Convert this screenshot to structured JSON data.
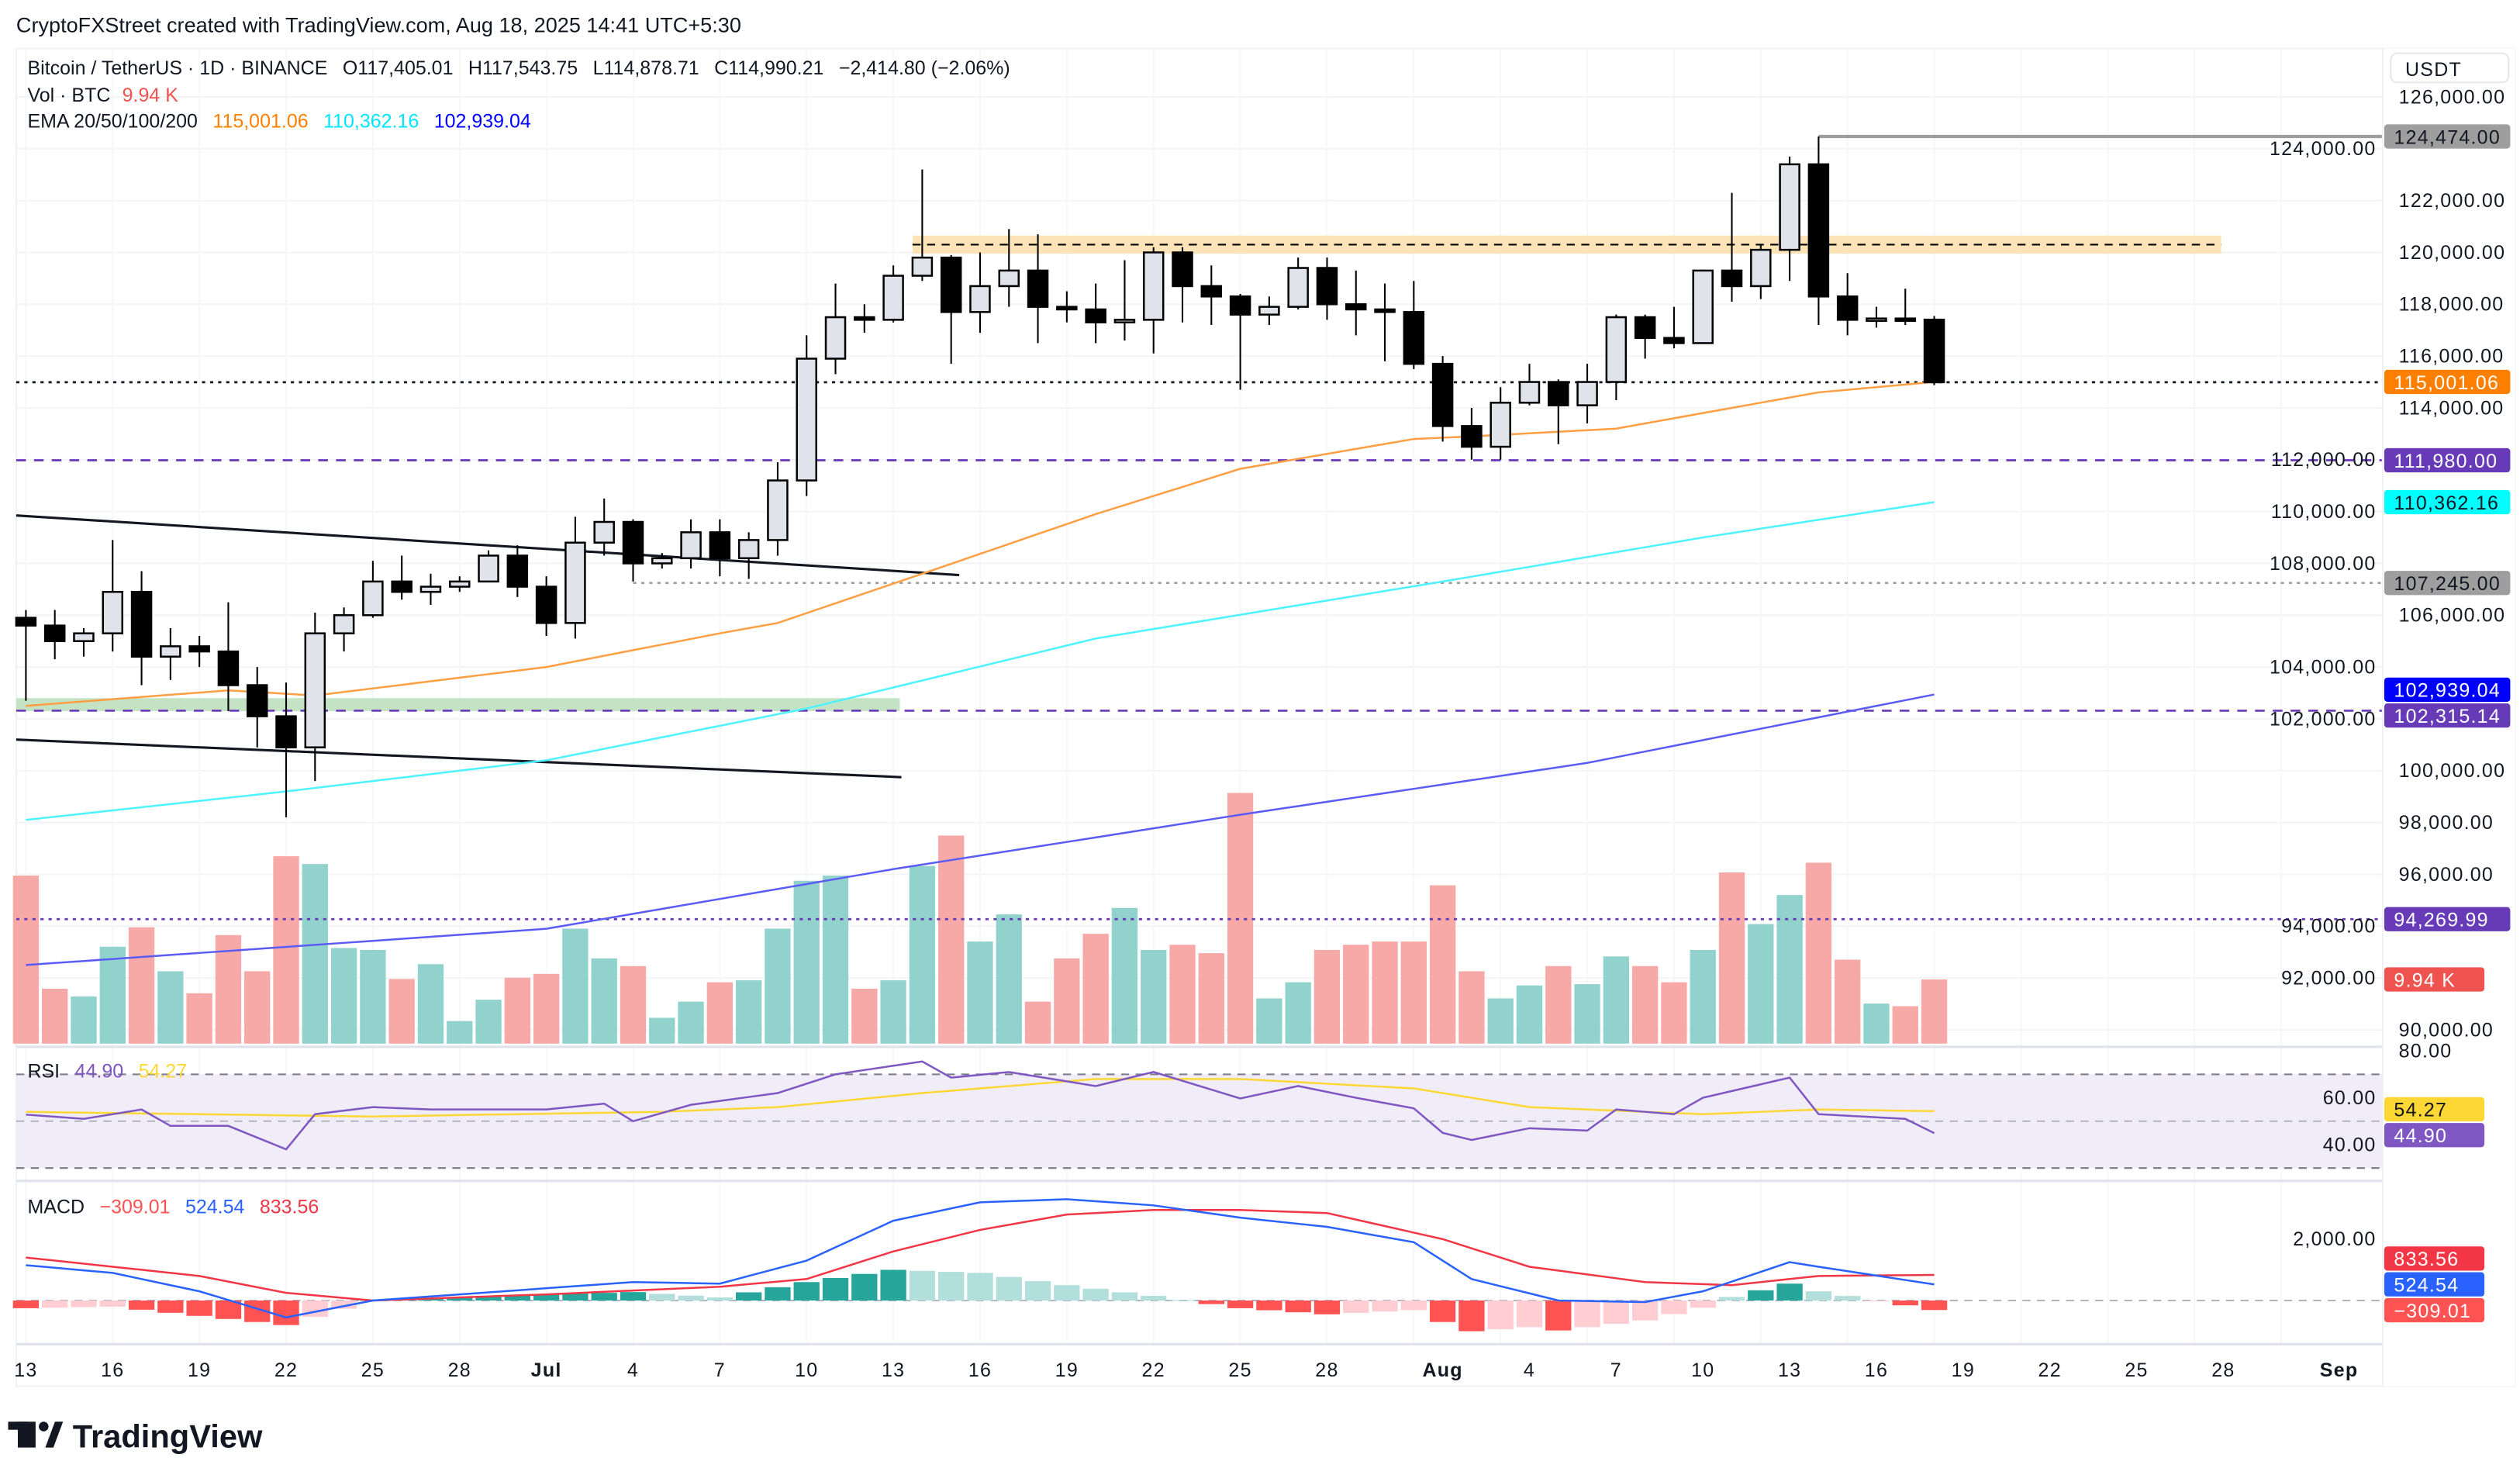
{
  "header": "CryptoFXStreet created with TradingView.com, Aug 18, 2025 14:41 UTC+5:30",
  "legend": {
    "symbol": "Bitcoin / TetherUS · 1D · BINANCE",
    "open": "O117,405.01",
    "high": "H117,543.75",
    "low": "L114,878.71",
    "close": "C114,990.21",
    "change": "−2,414.80 (−2.06%)",
    "vol_label": "Vol · BTC",
    "vol_value": "9.94 K",
    "ema_label": "EMA 20/50/100/200",
    "ema_values": [
      "115,001.06",
      "110,362.16",
      "102,939.04"
    ]
  },
  "currency": "USDT",
  "logo": "TradingView",
  "colors": {
    "up_body": "#e1e3ea",
    "down_body": "#000000",
    "vol_up": "#92d2cc",
    "vol_down": "#f7a9a7",
    "ema_orange": "#ff9f43",
    "ema_cyan": "#4df3ff",
    "ema_blue": "#5b5cf6",
    "rsi": "#7e57c2",
    "rsi_ma": "#fdd835",
    "macd": "#2962ff",
    "signal": "#f23645"
  },
  "price_axis_ticks": [
    "126,000.00",
    "124,000.00",
    "122,000.00",
    "120,000.00",
    "118,000.00",
    "116,000.00",
    "114,000.00",
    "112,000.00",
    "110,000.00",
    "108,000.00",
    "106,000.00",
    "104,000.00",
    "102,000.00",
    "100,000.00",
    "98,000.00",
    "96,000.00",
    "94,000.00",
    "92,000.00",
    "90,000.00"
  ],
  "price_badges": [
    {
      "text": "124,474.00",
      "value": 124474,
      "bg": "#9e9e9e",
      "fg": "#131722"
    },
    {
      "text": "115,001.06",
      "value": 115001.06,
      "bg": "#ff8000",
      "fg": "#ffffff"
    },
    {
      "text": "111,980.00",
      "value": 111980,
      "bg": "#673ab7",
      "fg": "#ffffff"
    },
    {
      "text": "110,362.16",
      "value": 110362.16,
      "bg": "#00ffff",
      "fg": "#131722"
    },
    {
      "text": "107,245.00",
      "value": 107245,
      "bg": "#9e9e9e",
      "fg": "#131722"
    },
    {
      "text": "102,939.04",
      "value": 102939.04,
      "bg": "#0000ff",
      "fg": "#ffffff"
    },
    {
      "text": "102,315.14",
      "value": 102315.14,
      "bg": "#673ab7",
      "fg": "#ffffff"
    },
    {
      "text": "94,269.99",
      "value": 94269.99,
      "bg": "#673ab7",
      "fg": "#ffffff"
    }
  ],
  "volume_badge": {
    "text": "9.94 K",
    "value": 9.94,
    "bg": "#ef5350",
    "fg": "#ffffff"
  },
  "rsi": {
    "label": "RSI",
    "value": "44.90",
    "ma_value": "54.27",
    "axis_ticks": [
      "80.00",
      "60.00",
      "40.00"
    ],
    "levels": [
      30,
      50,
      70
    ],
    "badges": [
      {
        "text": "54.27",
        "value": 54.27,
        "bg": "#fdd835",
        "fg": "#131722"
      },
      {
        "text": "44.90",
        "value": 44.9,
        "bg": "#7e57c2",
        "fg": "#ffffff"
      }
    ]
  },
  "macd": {
    "label": "MACD",
    "hist_value": "−309.01",
    "macd_value": "524.54",
    "signal_value": "833.56",
    "axis_ticks": [
      "2,000.00"
    ],
    "badges": [
      {
        "text": "833.56",
        "value": 833.56,
        "bg": "#f23645",
        "fg": "#ffffff"
      },
      {
        "text": "524.54",
        "value": 524.54,
        "bg": "#2962ff",
        "fg": "#ffffff"
      },
      {
        "text": "−309.01",
        "value": -309.01,
        "bg": "#ff5252",
        "fg": "#ffffff"
      }
    ]
  },
  "time_axis": [
    "13",
    "16",
    "19",
    "22",
    "25",
    "28",
    "Jul",
    "4",
    "7",
    "10",
    "13",
    "16",
    "19",
    "22",
    "25",
    "28",
    "Aug",
    "4",
    "7",
    "10",
    "13",
    "16",
    "19",
    "22",
    "25",
    "28",
    "Sep"
  ],
  "chart_data": {
    "type": "candlestick",
    "title": "Bitcoin / TetherUS · 1D · BINANCE",
    "x_axis_labels": [
      "13",
      "16",
      "19",
      "22",
      "25",
      "28",
      "Jul",
      "4",
      "7",
      "10",
      "13",
      "16",
      "19",
      "22",
      "25",
      "28",
      "Aug",
      "4",
      "7",
      "10",
      "13",
      "16",
      "19",
      "22",
      "25",
      "28",
      "Sep"
    ],
    "ylim": [
      89000,
      127000
    ],
    "candles_columns": [
      "date",
      "open",
      "high",
      "low",
      "close",
      "volume_k"
    ],
    "candles": [
      [
        "2025-06-13",
        105900,
        106200,
        102700,
        105600,
        26
      ],
      [
        "2025-06-14",
        105600,
        106200,
        104300,
        105000,
        8.5
      ],
      [
        "2025-06-15",
        105000,
        105500,
        104400,
        105300,
        7.3
      ],
      [
        "2025-06-16",
        105300,
        108900,
        104600,
        106900,
        15
      ],
      [
        "2025-06-17",
        106900,
        107700,
        103300,
        104400,
        18
      ],
      [
        "2025-06-18",
        104400,
        105500,
        103500,
        104800,
        11.2
      ],
      [
        "2025-06-19",
        104800,
        105200,
        104000,
        104600,
        7.8
      ],
      [
        "2025-06-20",
        104600,
        106500,
        102300,
        103300,
        16.8
      ],
      [
        "2025-06-21",
        103300,
        104000,
        100900,
        102100,
        11.2
      ],
      [
        "2025-06-22",
        102100,
        103400,
        98200,
        100900,
        29
      ],
      [
        "2025-06-23",
        100900,
        106100,
        99600,
        105300,
        27.8
      ],
      [
        "2025-06-24",
        105300,
        106300,
        104600,
        106000,
        14.8
      ],
      [
        "2025-06-25",
        106000,
        108100,
        105900,
        107300,
        14.5
      ],
      [
        "2025-06-26",
        107300,
        108300,
        106600,
        106900,
        10
      ],
      [
        "2025-06-27",
        106900,
        107600,
        106400,
        107100,
        12.3
      ],
      [
        "2025-06-28",
        107100,
        107500,
        106900,
        107300,
        3.5
      ],
      [
        "2025-06-29",
        107300,
        108500,
        107300,
        108300,
        6.8
      ],
      [
        "2025-06-30",
        108300,
        108700,
        106700,
        107100,
        10.2
      ],
      [
        "2025-07-01",
        107100,
        107500,
        105200,
        105700,
        10.8
      ],
      [
        "2025-07-02",
        105700,
        109800,
        105100,
        108800,
        17.8
      ],
      [
        "2025-07-03",
        108800,
        110500,
        108300,
        109600,
        13.2
      ],
      [
        "2025-07-04",
        109600,
        109700,
        107300,
        108000,
        12
      ],
      [
        "2025-07-05",
        108000,
        108400,
        107800,
        108200,
        4
      ],
      [
        "2025-07-06",
        108200,
        109700,
        107800,
        109200,
        6.5
      ],
      [
        "2025-07-07",
        109200,
        109700,
        107500,
        108200,
        9.5
      ],
      [
        "2025-07-08",
        108200,
        109200,
        107400,
        108900,
        9.8
      ],
      [
        "2025-07-09",
        108900,
        111900,
        108300,
        111200,
        17.8
      ],
      [
        "2025-07-10",
        111200,
        116800,
        110600,
        115900,
        25.2
      ],
      [
        "2025-07-11",
        115900,
        118800,
        115300,
        117500,
        26
      ],
      [
        "2025-07-12",
        117500,
        118000,
        116900,
        117400,
        8.5
      ],
      [
        "2025-07-13",
        117400,
        119500,
        117300,
        119100,
        9.8
      ],
      [
        "2025-07-14",
        119100,
        123200,
        118900,
        119800,
        27.5
      ],
      [
        "2025-07-15",
        119800,
        119900,
        115700,
        117700,
        32.2
      ],
      [
        "2025-07-16",
        117700,
        120000,
        116900,
        118700,
        15.8
      ],
      [
        "2025-07-17",
        118700,
        120900,
        117900,
        119300,
        20
      ],
      [
        "2025-07-18",
        119300,
        120700,
        116500,
        117900,
        6.5
      ],
      [
        "2025-07-19",
        117900,
        118500,
        117300,
        117800,
        13.2
      ],
      [
        "2025-07-20",
        117800,
        118800,
        116500,
        117300,
        17
      ],
      [
        "2025-07-21",
        117300,
        119700,
        116600,
        117400,
        21
      ],
      [
        "2025-07-22",
        117400,
        120200,
        116100,
        120000,
        14.5
      ],
      [
        "2025-07-23",
        120000,
        120200,
        117300,
        118700,
        15.3
      ],
      [
        "2025-07-24",
        118700,
        119500,
        117200,
        118300,
        14
      ],
      [
        "2025-07-25",
        118300,
        118400,
        114700,
        117600,
        38.8
      ],
      [
        "2025-07-26",
        117600,
        118300,
        117200,
        117900,
        7
      ],
      [
        "2025-07-27",
        117900,
        119800,
        117800,
        119400,
        9.5
      ],
      [
        "2025-07-28",
        119400,
        119800,
        117400,
        118000,
        14.5
      ],
      [
        "2025-07-29",
        118000,
        119300,
        116800,
        117800,
        15.3
      ],
      [
        "2025-07-30",
        117800,
        118800,
        115800,
        117700,
        15.8
      ],
      [
        "2025-07-31",
        117700,
        118900,
        115500,
        115700,
        15.8
      ],
      [
        "2025-08-01",
        115700,
        116000,
        112700,
        113300,
        24.5
      ],
      [
        "2025-08-02",
        113300,
        114000,
        112000,
        112500,
        11.2
      ],
      [
        "2025-08-03",
        112500,
        114800,
        112000,
        114200,
        7
      ],
      [
        "2025-08-04",
        114200,
        115700,
        114100,
        115000,
        9
      ],
      [
        "2025-08-05",
        115000,
        115100,
        112600,
        114100,
        12
      ],
      [
        "2025-08-06",
        114100,
        115700,
        113400,
        115000,
        9.2
      ],
      [
        "2025-08-07",
        115000,
        117600,
        114300,
        117500,
        13.5
      ],
      [
        "2025-08-08",
        117500,
        117600,
        115900,
        116700,
        12
      ],
      [
        "2025-08-09",
        116700,
        117900,
        116300,
        116500,
        9.5
      ],
      [
        "2025-08-10",
        116500,
        119300,
        116500,
        119300,
        14.5
      ],
      [
        "2025-08-11",
        119300,
        122300,
        118100,
        118700,
        26.5
      ],
      [
        "2025-08-12",
        118700,
        120300,
        118200,
        120100,
        18.5
      ],
      [
        "2025-08-13",
        120100,
        123700,
        118900,
        123400,
        23
      ],
      [
        "2025-08-14",
        123400,
        124474,
        117200,
        118300,
        28
      ],
      [
        "2025-08-15",
        118300,
        119200,
        116800,
        117400,
        13
      ],
      [
        "2025-08-16",
        117400,
        117900,
        117100,
        117450,
        6.2
      ],
      [
        "2025-08-17",
        117450,
        118600,
        117200,
        117405,
        5.8
      ],
      [
        "2025-08-18",
        117405.01,
        117543.75,
        114878.71,
        114990.21,
        9.94
      ]
    ],
    "ema_20": [
      [
        "2025-06-13",
        102500
      ],
      [
        "2025-06-20",
        103100
      ],
      [
        "2025-06-23",
        102900
      ],
      [
        "2025-07-01",
        104000
      ],
      [
        "2025-07-07",
        105300
      ],
      [
        "2025-07-09",
        105700
      ],
      [
        "2025-07-14",
        107600
      ],
      [
        "2025-07-20",
        109900
      ],
      [
        "2025-07-25",
        111650
      ],
      [
        "2025-07-31",
        112800
      ],
      [
        "2025-08-02",
        112900
      ],
      [
        "2025-08-07",
        113200
      ],
      [
        "2025-08-11",
        114000
      ],
      [
        "2025-08-14",
        114600
      ],
      [
        "2025-08-18",
        115001.06
      ]
    ],
    "ema_cyan": [
      [
        "2025-06-13",
        98100
      ],
      [
        "2025-06-22",
        99200
      ],
      [
        "2025-07-01",
        100400
      ],
      [
        "2025-07-10",
        102400
      ],
      [
        "2025-07-20",
        105100
      ],
      [
        "2025-08-01",
        107300
      ],
      [
        "2025-08-10",
        109000
      ],
      [
        "2025-08-18",
        110362.16
      ]
    ],
    "ema_blue": [
      [
        "2025-06-13",
        92500
      ],
      [
        "2025-07-01",
        93900
      ],
      [
        "2025-07-13",
        96200
      ],
      [
        "2025-07-25",
        98300
      ],
      [
        "2025-08-06",
        100300
      ],
      [
        "2025-08-18",
        102939.04
      ]
    ],
    "levels": [
      {
        "value": 124474,
        "from": "2025-08-14",
        "style": "solid",
        "color": "#9e9e9e"
      },
      {
        "value": 111980,
        "from": "2025-06-13",
        "style": "dashed",
        "color": "#673ab7"
      },
      {
        "value": 107245,
        "from": "2025-07-04",
        "style": "dotted",
        "color": "#9e9e9e"
      },
      {
        "value": 102315.14,
        "from": "2025-06-13",
        "style": "dashed",
        "color": "#673ab7"
      },
      {
        "value": 94269.99,
        "from": "2025-06-13",
        "style": "dotted",
        "color": "#673ab7"
      },
      {
        "value": 114990.21,
        "from": "2025-06-13",
        "style": "dotted",
        "color": "#131722"
      }
    ],
    "zones": [
      {
        "from": "2025-07-14",
        "to": "2025-09-09",
        "low": 119950,
        "high": 120650,
        "mid": 120300,
        "color": "#fde3b8"
      },
      {
        "from": "2025-06-13",
        "to": "2025-07-13",
        "low": 102300,
        "high": 102800,
        "color": "#c4e3c4"
      }
    ],
    "trendlines": [
      {
        "from": [
          "2025-06-13",
          109850
        ],
        "to": [
          "2025-07-15",
          107550
        ]
      },
      {
        "from": [
          "2025-06-13",
          101200
        ],
        "to": [
          "2025-07-13",
          99750
        ]
      }
    ],
    "rsi": [
      [
        "2025-06-13",
        52.8
      ],
      [
        "2025-06-15",
        51
      ],
      [
        "2025-06-17",
        55
      ],
      [
        "2025-06-18",
        48
      ],
      [
        "2025-06-20",
        48
      ],
      [
        "2025-06-22",
        38
      ],
      [
        "2025-06-23",
        53
      ],
      [
        "2025-06-25",
        56
      ],
      [
        "2025-06-27",
        55
      ],
      [
        "2025-07-01",
        55
      ],
      [
        "2025-07-03",
        57.5
      ],
      [
        "2025-07-04",
        50
      ],
      [
        "2025-07-06",
        57
      ],
      [
        "2025-07-09",
        62
      ],
      [
        "2025-07-11",
        70
      ],
      [
        "2025-07-14",
        75.5
      ],
      [
        "2025-07-15",
        68.6
      ],
      [
        "2025-07-17",
        71
      ],
      [
        "2025-07-20",
        65
      ],
      [
        "2025-07-22",
        71
      ],
      [
        "2025-07-25",
        59.7
      ],
      [
        "2025-07-27",
        65
      ],
      [
        "2025-07-29",
        60
      ],
      [
        "2025-07-31",
        55.5
      ],
      [
        "2025-08-01",
        45
      ],
      [
        "2025-08-02",
        42
      ],
      [
        "2025-08-04",
        47
      ],
      [
        "2025-08-06",
        46
      ],
      [
        "2025-08-07",
        55
      ],
      [
        "2025-08-09",
        53
      ],
      [
        "2025-08-10",
        60
      ],
      [
        "2025-08-13",
        68.6
      ],
      [
        "2025-08-14",
        53
      ],
      [
        "2025-08-17",
        51
      ],
      [
        "2025-08-18",
        44.9
      ]
    ],
    "rsi_ma": [
      [
        "2025-06-13",
        54
      ],
      [
        "2025-06-25",
        52
      ],
      [
        "2025-07-05",
        54
      ],
      [
        "2025-07-09",
        56
      ],
      [
        "2025-07-14",
        62
      ],
      [
        "2025-07-20",
        68
      ],
      [
        "2025-07-25",
        68
      ],
      [
        "2025-07-31",
        64
      ],
      [
        "2025-08-04",
        56
      ],
      [
        "2025-08-10",
        53
      ],
      [
        "2025-08-14",
        55
      ],
      [
        "2025-08-18",
        54.27
      ]
    ],
    "macd_line": [
      [
        "2025-06-13",
        1150
      ],
      [
        "2025-06-16",
        900
      ],
      [
        "2025-06-19",
        300
      ],
      [
        "2025-06-22",
        -550
      ],
      [
        "2025-06-25",
        0
      ],
      [
        "2025-06-28",
        200
      ],
      [
        "2025-07-01",
        400
      ],
      [
        "2025-07-04",
        600
      ],
      [
        "2025-07-07",
        550
      ],
      [
        "2025-07-10",
        1300
      ],
      [
        "2025-07-13",
        2600
      ],
      [
        "2025-07-16",
        3200
      ],
      [
        "2025-07-19",
        3300
      ],
      [
        "2025-07-22",
        3100
      ],
      [
        "2025-07-25",
        2700
      ],
      [
        "2025-07-28",
        2400
      ],
      [
        "2025-07-31",
        1900
      ],
      [
        "2025-08-02",
        700
      ],
      [
        "2025-08-05",
        0
      ],
      [
        "2025-08-08",
        -50
      ],
      [
        "2025-08-10",
        300
      ],
      [
        "2025-08-13",
        1250
      ],
      [
        "2025-08-14",
        1100
      ],
      [
        "2025-08-18",
        524.54
      ]
    ],
    "signal_line": [
      [
        "2025-06-13",
        1400
      ],
      [
        "2025-06-19",
        800
      ],
      [
        "2025-06-22",
        250
      ],
      [
        "2025-06-25",
        0
      ],
      [
        "2025-07-01",
        200
      ],
      [
        "2025-07-07",
        450
      ],
      [
        "2025-07-10",
        700
      ],
      [
        "2025-07-13",
        1600
      ],
      [
        "2025-07-16",
        2300
      ],
      [
        "2025-07-19",
        2800
      ],
      [
        "2025-07-22",
        2950
      ],
      [
        "2025-07-25",
        2950
      ],
      [
        "2025-07-28",
        2850
      ],
      [
        "2025-08-01",
        2000
      ],
      [
        "2025-08-04",
        1100
      ],
      [
        "2025-08-08",
        600
      ],
      [
        "2025-08-11",
        500
      ],
      [
        "2025-08-14",
        800
      ],
      [
        "2025-08-18",
        833.56
      ]
    ]
  }
}
